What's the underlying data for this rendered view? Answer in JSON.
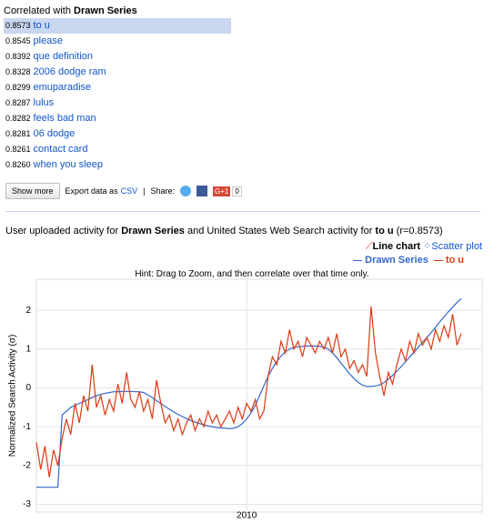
{
  "header": {
    "prefix": "Correlated with",
    "series": "Drawn Series"
  },
  "results": [
    {
      "score": "0.8573",
      "term": "to u"
    },
    {
      "score": "0.8545",
      "term": "please"
    },
    {
      "score": "0.8392",
      "term": "que definition"
    },
    {
      "score": "0.8328",
      "term": "2006 dodge ram"
    },
    {
      "score": "0.8299",
      "term": "emuparadise"
    },
    {
      "score": "0.8287",
      "term": "lulus"
    },
    {
      "score": "0.8282",
      "term": "feels bad man"
    },
    {
      "score": "0.8281",
      "term": "06 dodge"
    },
    {
      "score": "0.8261",
      "term": "contact card"
    },
    {
      "score": "0.8260",
      "term": "when you sleep"
    }
  ],
  "toolbar": {
    "more": "Show more",
    "export": "Export data as",
    "csv": "CSV",
    "sep": "|",
    "share": "Share:",
    "plus": "G+1",
    "count": "0"
  },
  "caption": {
    "a": "User uploaded activity for",
    "b": "and United States Web Search activity for",
    "c": "(r=0.8573)"
  },
  "views": {
    "line": "Line chart",
    "scatter": "Scatter plot"
  },
  "hint": "Hint: Drag to Zoom, and then correlate over that time only.",
  "chart_data": {
    "type": "line",
    "y_label": "Normalized Search Activity (σ)",
    "ylim": [
      -3.2,
      2.8
    ],
    "yticks": [
      -3,
      -2,
      -1,
      0,
      1,
      2
    ],
    "grid": true,
    "categories": [
      null,
      null,
      null,
      null,
      null,
      null,
      null,
      null,
      null,
      null,
      null,
      null,
      null,
      null,
      null,
      null,
      null,
      null,
      null,
      null,
      null,
      null,
      null,
      null,
      null,
      null,
      null,
      null,
      null,
      null,
      null,
      null,
      null,
      null,
      null,
      null,
      null,
      null,
      null,
      null,
      null,
      null,
      null,
      null,
      null,
      null,
      null,
      null,
      null,
      "2010",
      null,
      null,
      null,
      null,
      null,
      null,
      null,
      null,
      null,
      null,
      null,
      null,
      null,
      null,
      null,
      null,
      null,
      null,
      null,
      null,
      null,
      null,
      null,
      null,
      null,
      null,
      null,
      null,
      null,
      null,
      null,
      null,
      null,
      null,
      null,
      null,
      null,
      null,
      null,
      null,
      null,
      null,
      null,
      null,
      null,
      null,
      null,
      null,
      null,
      null
    ],
    "series": [
      {
        "name": "Drawn Series",
        "color": "#3366cc",
        "values": [
          -2.56,
          -2.56,
          -2.56,
          -2.56,
          -2.56,
          -2.56,
          -0.7,
          -0.6,
          -0.5,
          -0.45,
          -0.4,
          -0.35,
          -0.3,
          -0.25,
          -0.2,
          -0.17,
          -0.14,
          -0.12,
          -0.1,
          -0.1,
          -0.09,
          -0.09,
          -0.09,
          -0.1,
          -0.1,
          -0.12,
          -0.18,
          -0.25,
          -0.33,
          -0.4,
          -0.48,
          -0.55,
          -0.62,
          -0.68,
          -0.74,
          -0.79,
          -0.84,
          -0.88,
          -0.92,
          -0.95,
          -0.98,
          -1.0,
          -1.02,
          -1.03,
          -1.04,
          -1.05,
          -1.04,
          -1.0,
          -0.92,
          -0.8,
          -0.65,
          -0.45,
          -0.2,
          0.05,
          0.3,
          0.5,
          0.68,
          0.82,
          0.93,
          1.0,
          1.04,
          1.06,
          1.07,
          1.08,
          1.08,
          1.08,
          1.07,
          1.05,
          1.0,
          0.9,
          0.78,
          0.64,
          0.5,
          0.36,
          0.24,
          0.14,
          0.07,
          0.04,
          0.04,
          0.05,
          0.08,
          0.14,
          0.22,
          0.32,
          0.43,
          0.55,
          0.67,
          0.8,
          0.92,
          1.05,
          1.18,
          1.3,
          1.43,
          1.56,
          1.7,
          1.83,
          1.96,
          2.08,
          2.2,
          2.3
        ]
      },
      {
        "name": "to u",
        "color": "#dc3912",
        "values": [
          -1.4,
          -2.1,
          -1.5,
          -2.3,
          -1.6,
          -2.0,
          -1.3,
          -0.8,
          -1.2,
          -0.4,
          -0.9,
          -0.2,
          -0.6,
          0.6,
          -0.5,
          -0.2,
          -0.7,
          -0.3,
          -0.6,
          0.1,
          -0.4,
          0.4,
          -0.3,
          -0.5,
          -0.1,
          -0.6,
          -0.3,
          -0.8,
          0.2,
          -0.4,
          -0.9,
          -0.7,
          -1.1,
          -0.8,
          -1.2,
          -0.9,
          -0.7,
          -1.1,
          -0.8,
          -1.0,
          -0.6,
          -0.9,
          -0.7,
          -1.0,
          -0.8,
          -0.6,
          -0.9,
          -0.5,
          -0.8,
          -0.4,
          -0.6,
          -0.3,
          -0.8,
          -0.6,
          0.3,
          0.8,
          0.6,
          1.2,
          0.9,
          1.5,
          1.0,
          1.2,
          0.8,
          1.3,
          1.1,
          0.9,
          1.2,
          1.0,
          1.3,
          0.9,
          1.4,
          0.8,
          1.0,
          0.5,
          0.7,
          0.4,
          0.6,
          0.3,
          2.1,
          0.9,
          0.3,
          -0.2,
          0.4,
          0.1,
          0.6,
          1.0,
          0.7,
          1.2,
          0.9,
          1.4,
          1.1,
          1.3,
          1.0,
          1.5,
          1.2,
          1.6,
          1.3,
          1.9,
          1.1,
          1.4
        ]
      }
    ]
  }
}
